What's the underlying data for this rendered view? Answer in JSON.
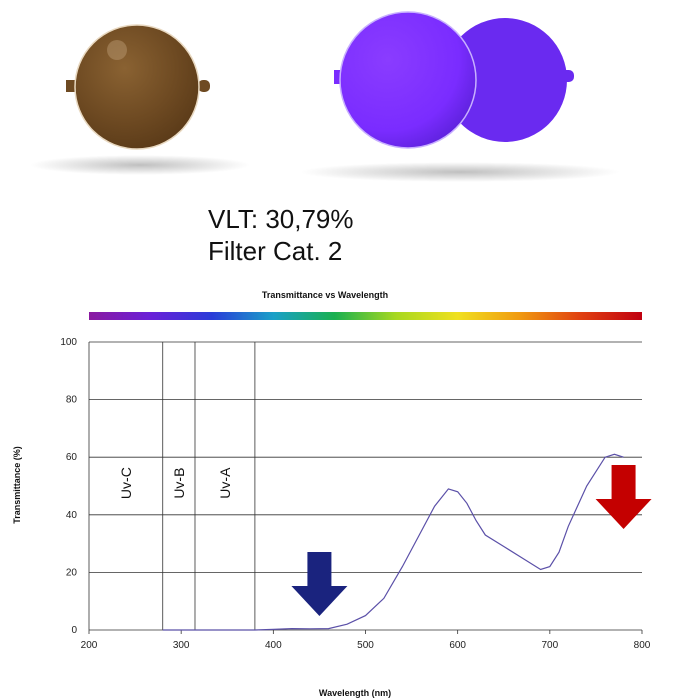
{
  "info": {
    "vlt": "VLT: 30,79%",
    "category": "Filter Cat. 2"
  },
  "lenses": {
    "brown_color": "#6e4a22",
    "purple_color": "#7a2cff",
    "purple_back_color": "#6a2af0"
  },
  "chart_data": {
    "type": "line",
    "title": "Transmittance vs Wavelength",
    "xlabel": "Wavelength (nm)",
    "ylabel": "Transmittance (%)",
    "xlim": [
      200,
      800
    ],
    "ylim": [
      0,
      100
    ],
    "xticks": [
      200,
      300,
      400,
      500,
      600,
      700,
      800
    ],
    "yticks": [
      0,
      20,
      40,
      60,
      80,
      100
    ],
    "grid": "horizontal",
    "series": [
      {
        "color": "#5b50a8",
        "x": [
          280,
          380,
          400,
          420,
          440,
          460,
          480,
          500,
          520,
          540,
          560,
          575,
          590,
          600,
          610,
          620,
          630,
          650,
          670,
          690,
          700,
          710,
          720,
          740,
          760,
          770,
          780
        ],
        "y": [
          0,
          0,
          0.2,
          0.5,
          0.4,
          0.5,
          2,
          5,
          11,
          22,
          34,
          43,
          49,
          48,
          44,
          38,
          33,
          29,
          25,
          21,
          22,
          27,
          36,
          50,
          60,
          61,
          60
        ]
      }
    ],
    "uv_bands": [
      {
        "label": "Uv-C",
        "from": 200,
        "to": 280
      },
      {
        "label": "Uv-B",
        "from": 280,
        "to": 315
      },
      {
        "label": "Uv-A",
        "from": 315,
        "to": 380
      }
    ],
    "arrows": [
      {
        "wavelength": 450,
        "color": "#1a237e",
        "direction": "down"
      },
      {
        "wavelength": 780,
        "color": "#c40000",
        "direction": "down"
      }
    ],
    "spectrum_bar": [
      "#8a1aa0",
      "#6a20d8",
      "#2a3cd8",
      "#1aa0c8",
      "#1ab050",
      "#a8d820",
      "#f0e020",
      "#f09a10",
      "#e04010",
      "#c00010"
    ]
  }
}
